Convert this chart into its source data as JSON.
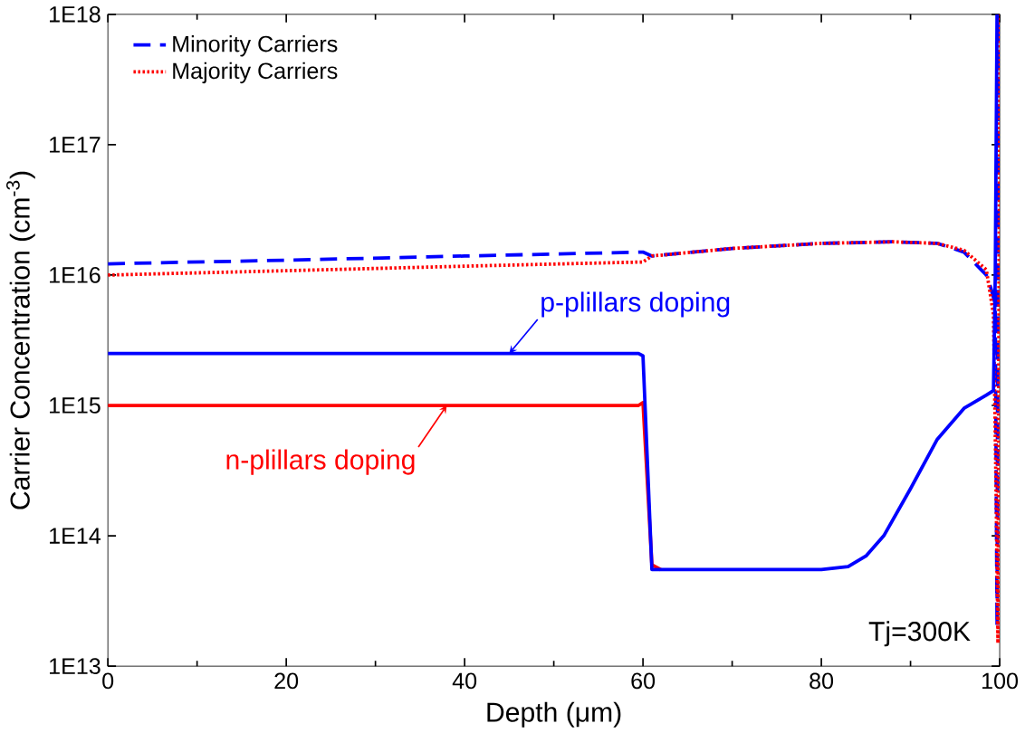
{
  "chart_data": {
    "type": "line",
    "xlabel": "Depth (μm)",
    "ylabel": "Carrier Concentration (cm$^{-3}$)",
    "log": "y",
    "xlim": [
      0,
      100
    ],
    "ylim": [
      10000000000000.0,
      1e+18
    ],
    "xticks": [
      0,
      20,
      40,
      60,
      80,
      100
    ],
    "yticks": [
      {
        "value": 10000000000000.0,
        "label": "1E13"
      },
      {
        "value": 100000000000000.0,
        "label": "1E14"
      },
      {
        "value": 1000000000000000.0,
        "label": "1E15"
      },
      {
        "value": 1e+16,
        "label": "1E16"
      },
      {
        "value": 1e+17,
        "label": "1E17"
      },
      {
        "value": 1e+18,
        "label": "1E18"
      }
    ],
    "legend": "top left",
    "marker": "none",
    "grid": false,
    "series": [
      {
        "name": "Minority Carriers",
        "color": "#0000ff",
        "line_style": "dashed",
        "x": [
          0,
          20,
          40,
          60,
          61,
          70,
          80,
          88,
          93,
          96,
          98.5,
          99,
          99.5,
          99.7,
          99.85
        ],
        "values": [
          1.22e+16,
          1.3e+16,
          1.4e+16,
          1.5e+16,
          1.4e+16,
          1.6e+16,
          1.75e+16,
          1.8e+16,
          1.75e+16,
          1.5e+16,
          1e+16,
          8000000000000000.0,
          6000000000000000.0,
          20000000000000.0,
          1e+18
        ]
      },
      {
        "name": "Majority Carriers",
        "color": "#ff0000",
        "line_style": "dotted",
        "x": [
          0,
          20,
          40,
          60,
          61,
          70,
          80,
          88,
          93,
          96,
          98.5,
          99.3,
          99.6,
          99.8,
          100
        ],
        "values": [
          1e+16,
          1.08e+16,
          1.17e+16,
          1.26e+16,
          1.4e+16,
          1.6e+16,
          1.75e+16,
          1.8e+16,
          1.75e+16,
          1.55e+16,
          1.1e+16,
          5000000000000000.0,
          200000000000000.0,
          15000000000000.0,
          1e+18
        ]
      },
      {
        "color": "#ff0000",
        "line_style": "solid",
        "x": [
          0,
          59.5,
          60,
          61,
          62
        ],
        "values": [
          1000000000000000.0,
          1000000000000000.0,
          1050000000000000.0,
          60000000000000.0,
          55000000000000.0
        ]
      },
      {
        "color": "#0000ff",
        "line_style": "solid",
        "x": [
          0,
          59.5,
          60,
          61,
          70,
          80,
          83,
          85,
          87,
          90,
          93,
          96,
          98.5,
          99.3,
          99.5,
          99.7
        ],
        "values": [
          2500000000000000.0,
          2500000000000000.0,
          2400000000000000.0,
          55000000000000.0,
          55000000000000.0,
          55000000000000.0,
          58000000000000.0,
          70000000000000.0,
          100000000000000.0,
          230000000000000.0,
          550000000000000.0,
          950000000000000.0,
          1200000000000000.0,
          1300000000000000.0,
          1e+16,
          1e+18
        ]
      }
    ],
    "annotations": [
      {
        "text": "p-plillars doping",
        "x": 45,
        "y": 2500000000000000.0
      },
      {
        "text": "n-plillars doping",
        "x": 38,
        "y": 1000000000000000.0
      },
      "Tj=300K"
    ]
  }
}
